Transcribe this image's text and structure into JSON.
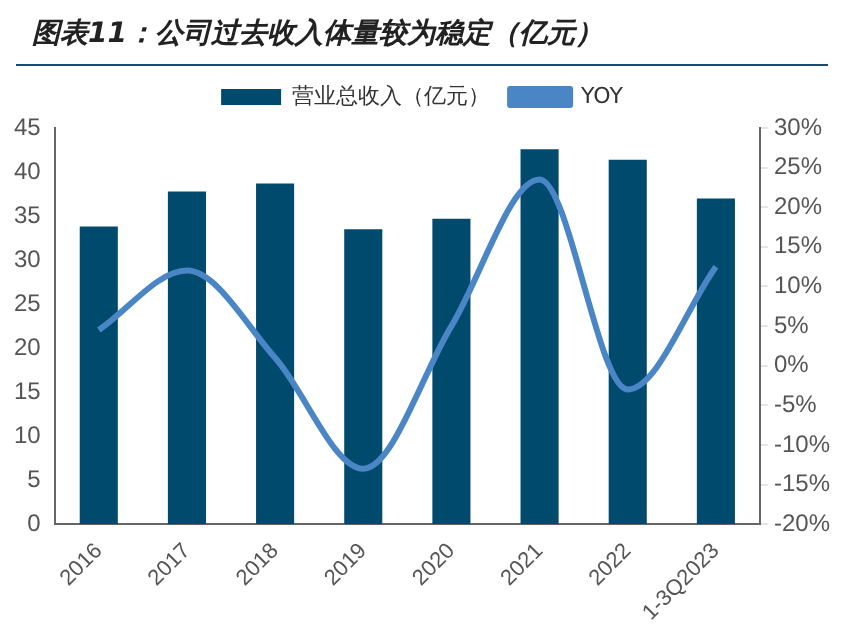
{
  "chart_data": {
    "type": "bar",
    "title": "图表11：公司过去收入体量较为稳定（亿元）",
    "categories": [
      "2016",
      "2017",
      "2018",
      "2019",
      "2020",
      "2021",
      "2022",
      "1-3Q2023"
    ],
    "series": [
      {
        "name": "营业总收入（亿元）",
        "color": "#004a6e",
        "values": [
          33.8,
          37.8,
          38.7,
          33.5,
          34.7,
          42.6,
          41.4,
          37.0
        ]
      },
      {
        "name": "YOY",
        "type": "line",
        "axis": "y2",
        "color": "#4a86c5",
        "values": [
          4.5,
          12,
          1,
          -13,
          5,
          23.5,
          -3,
          12.5
        ]
      }
    ],
    "ylim": [
      0,
      45
    ],
    "yticks": [
      0,
      5,
      10,
      15,
      20,
      25,
      30,
      35,
      40,
      45
    ],
    "y2lim": [
      -20,
      30
    ],
    "y2ticks": [
      {
        "value": -20,
        "label": "-20%"
      },
      {
        "value": -15,
        "label": "-15%"
      },
      {
        "value": -10,
        "label": "-10%"
      },
      {
        "value": -5,
        "label": "-5%"
      },
      {
        "value": 0,
        "label": "0%"
      },
      {
        "value": 5,
        "label": "5%"
      },
      {
        "value": 10,
        "label": "10%"
      },
      {
        "value": 15,
        "label": "15%"
      },
      {
        "value": 20,
        "label": "20%"
      },
      {
        "value": 25,
        "label": "25%"
      },
      {
        "value": 30,
        "label": "30%"
      }
    ],
    "grid": false,
    "legend": "top",
    "marker": "none"
  }
}
